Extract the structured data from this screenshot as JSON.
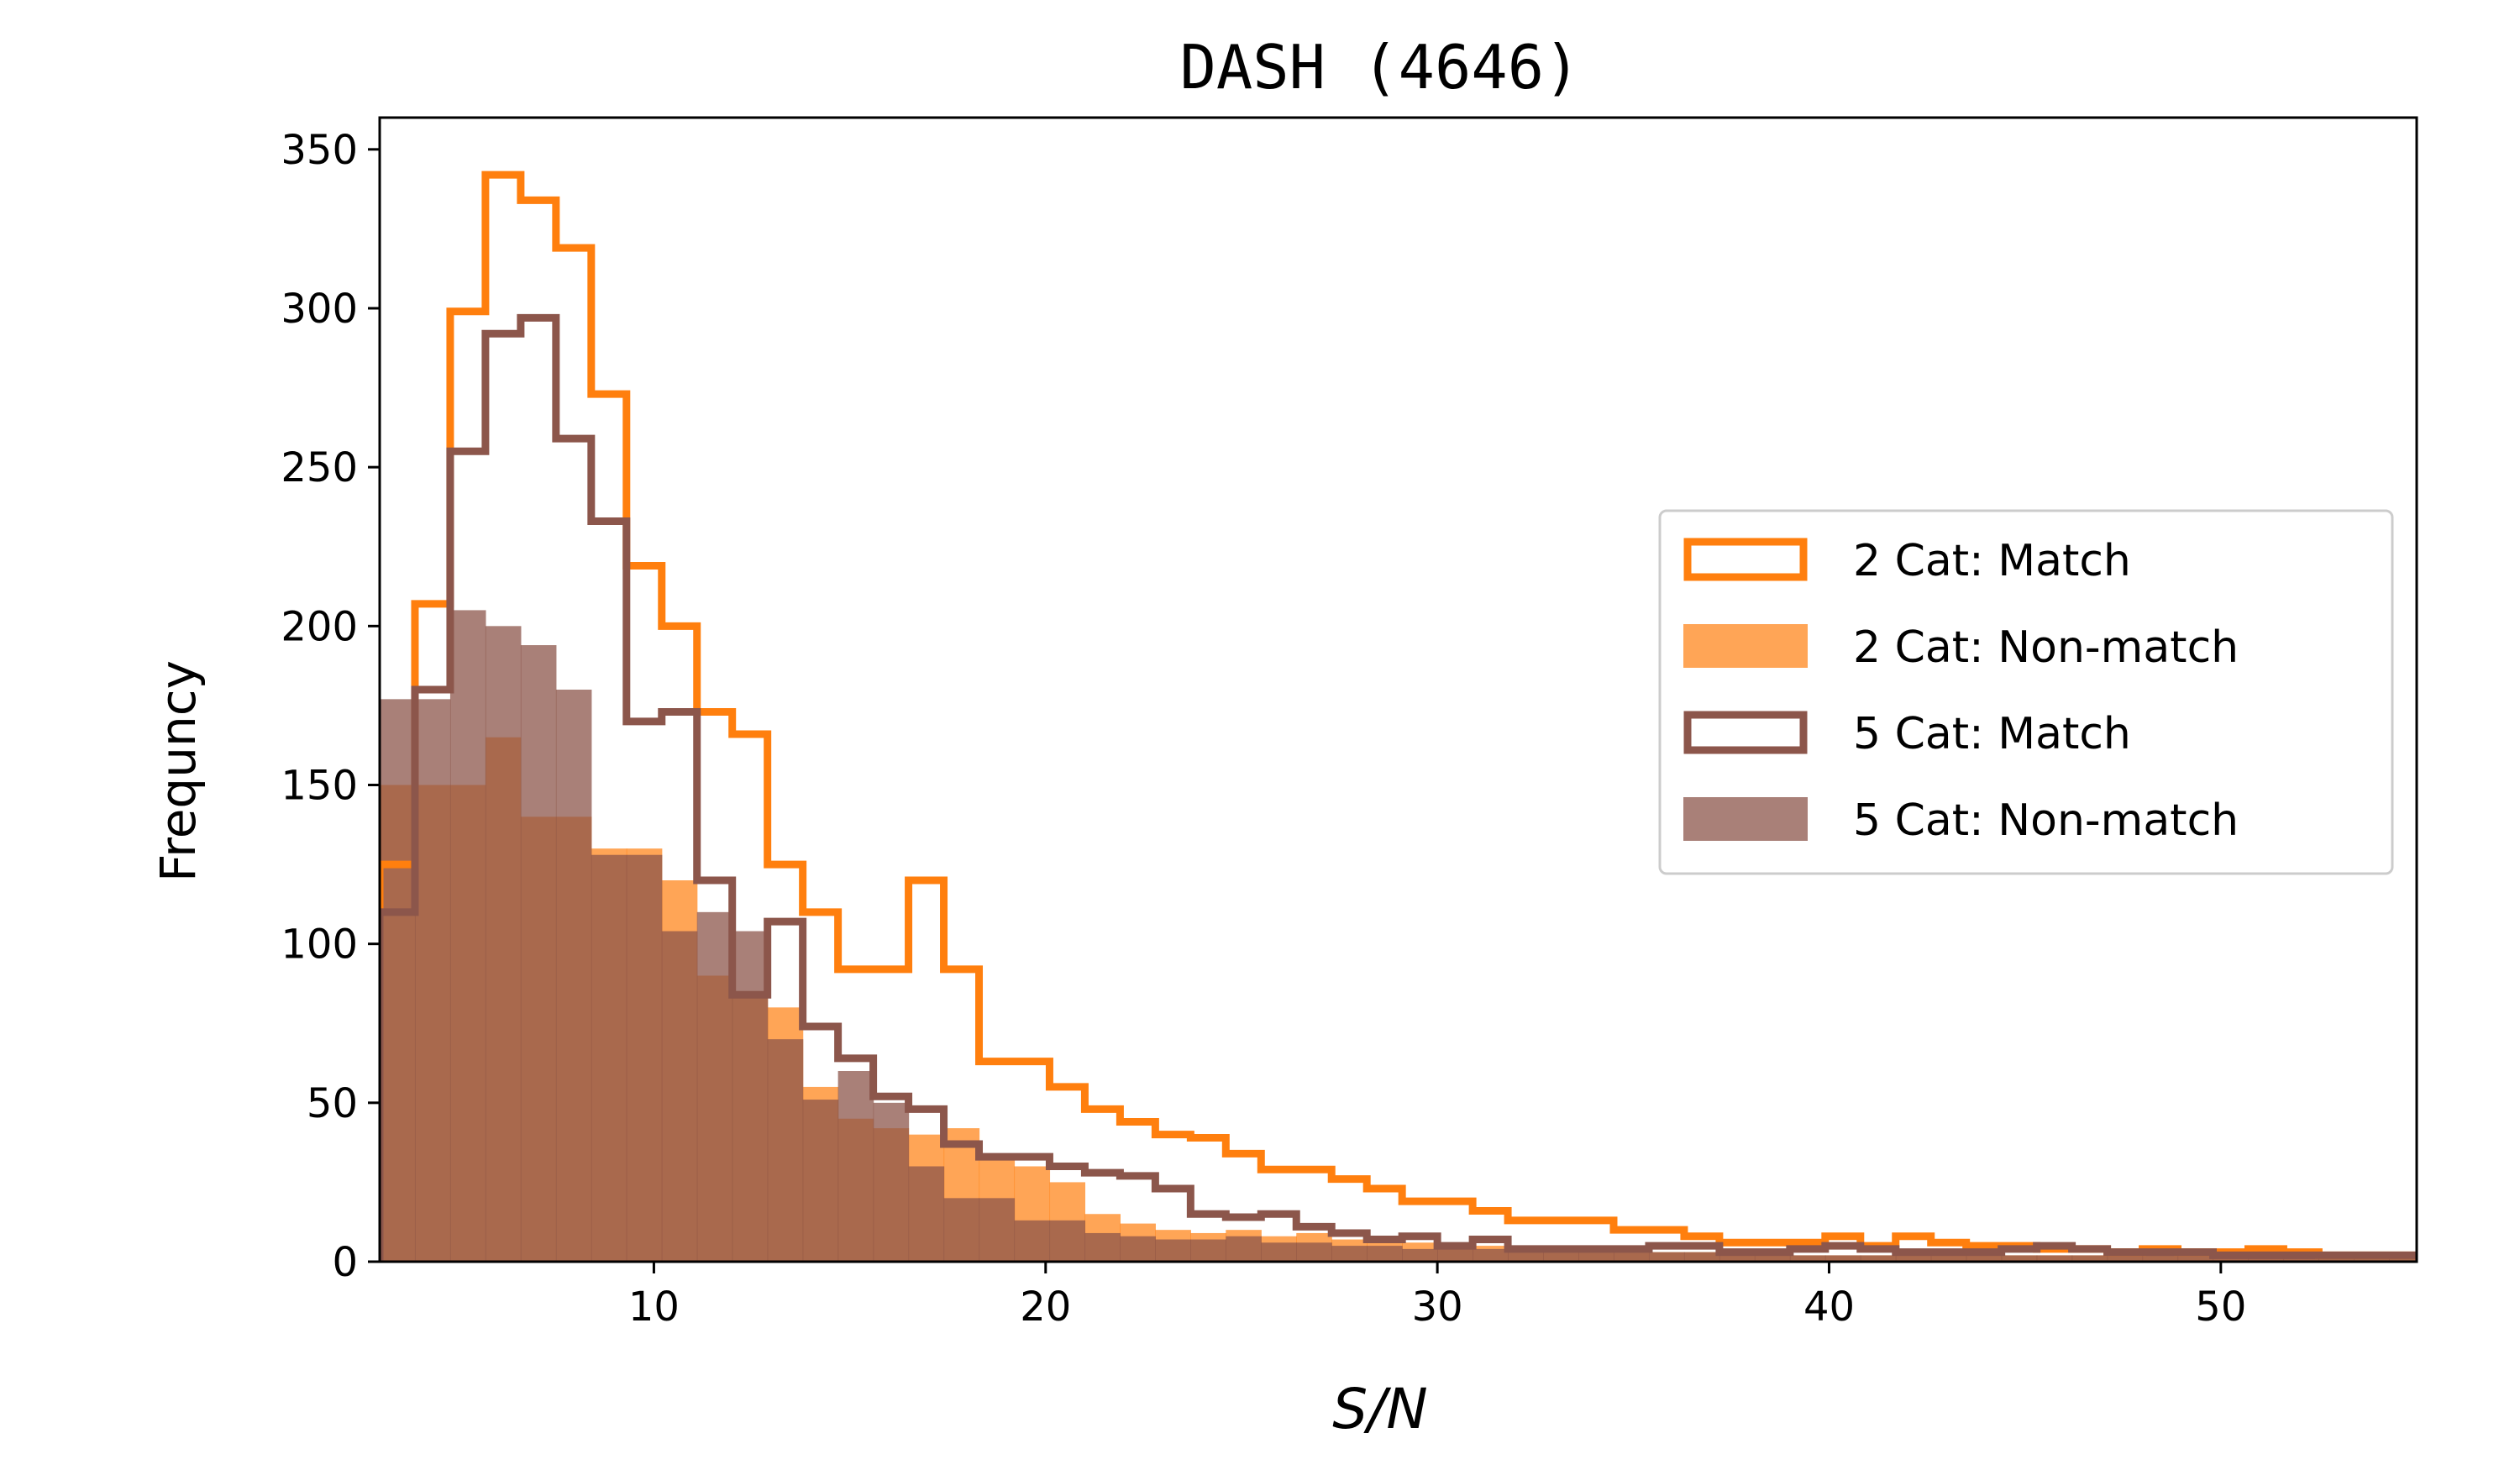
{
  "chart_data": {
    "type": "histogram",
    "title": "DASH (4646)",
    "xlabel": "S/N",
    "ylabel": "Frequncy",
    "xlim": [
      3,
      55
    ],
    "ylim": [
      0,
      360
    ],
    "xticks": [
      10,
      20,
      30,
      40,
      50
    ],
    "yticks": [
      0,
      50,
      100,
      150,
      200,
      250,
      300,
      350
    ],
    "bin_start": 3,
    "bin_width": 0.9,
    "colors": {
      "two_cat": "#ff7f0e",
      "two_cat_fill": "#ff7f0e",
      "five_cat": "#8c564b",
      "five_cat_fill": "#8c564b"
    },
    "series": [
      {
        "name": "2 Cat: Match",
        "style": "step",
        "color": "#ff7f0e",
        "values": [
          125,
          207,
          299,
          342,
          334,
          319,
          273,
          219,
          200,
          173,
          166,
          125,
          110,
          92,
          92,
          120,
          92,
          63,
          63,
          55,
          48,
          44,
          40,
          39,
          34,
          29,
          29,
          26,
          23,
          19,
          19,
          16,
          13,
          13,
          13,
          10,
          10,
          8,
          6,
          6,
          6,
          8,
          5,
          8,
          6,
          5,
          5,
          4,
          4,
          3,
          4,
          3,
          3,
          4,
          3,
          2,
          2,
          2
        ]
      },
      {
        "name": "2 Cat: Non-match",
        "style": "filled",
        "color": "#ff7f0e",
        "values": [
          150,
          150,
          150,
          165,
          140,
          140,
          130,
          130,
          120,
          90,
          85,
          80,
          55,
          45,
          42,
          40,
          42,
          32,
          30,
          25,
          15,
          12,
          10,
          9,
          10,
          8,
          9,
          7,
          6,
          6,
          5,
          5,
          4,
          4,
          3,
          3,
          3,
          3,
          2,
          2,
          2,
          2,
          2,
          2,
          2,
          2,
          2,
          2,
          2,
          2,
          2,
          2,
          2,
          1,
          1,
          1,
          1,
          1
        ]
      },
      {
        "name": "5 Cat: Match",
        "style": "step",
        "color": "#8c564b",
        "values": [
          110,
          180,
          255,
          292,
          297,
          259,
          233,
          170,
          173,
          120,
          84,
          107,
          74,
          64,
          52,
          48,
          37,
          33,
          33,
          30,
          28,
          27,
          23,
          15,
          14,
          15,
          11,
          9,
          7,
          8,
          5,
          7,
          4,
          4,
          4,
          4,
          5,
          5,
          3,
          3,
          4,
          5,
          4,
          3,
          3,
          3,
          4,
          5,
          4,
          3,
          3,
          3,
          2,
          2,
          2,
          2,
          2,
          2
        ]
      },
      {
        "name": "5 Cat: Non-match",
        "style": "filled",
        "color": "#8c564b",
        "values": [
          177,
          177,
          205,
          200,
          194,
          180,
          128,
          128,
          104,
          110,
          104,
          70,
          51,
          60,
          50,
          30,
          20,
          20,
          13,
          13,
          9,
          8,
          7,
          7,
          8,
          6,
          6,
          5,
          5,
          4,
          4,
          4,
          3,
          3,
          3,
          3,
          3,
          3,
          2,
          2,
          2,
          2,
          2,
          2,
          2,
          2,
          2,
          2,
          2,
          2,
          2,
          2,
          2,
          2,
          2,
          2,
          2,
          2
        ]
      }
    ],
    "legend": {
      "position": "center-right",
      "entries": [
        "2 Cat: Match",
        "2 Cat: Non-match",
        "5 Cat: Match",
        "5 Cat: Non-match"
      ]
    }
  }
}
